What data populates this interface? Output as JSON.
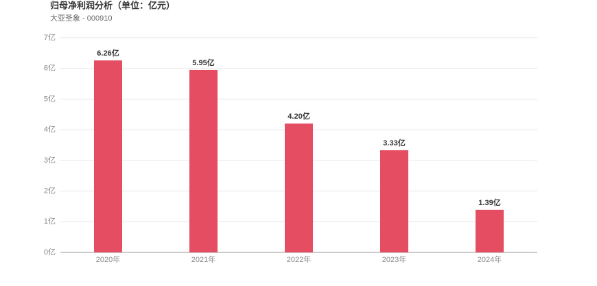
{
  "chart_data": {
    "type": "bar",
    "title": "归母净利润分析（单位：亿元）",
    "subtitle": "大亚圣象 - 000910",
    "categories": [
      "2020年",
      "2021年",
      "2022年",
      "2023年",
      "2024年"
    ],
    "values": [
      6.26,
      5.95,
      4.2,
      3.33,
      1.39
    ],
    "value_labels": [
      "6.26亿",
      "5.95亿",
      "4.20亿",
      "3.33亿",
      "1.39亿"
    ],
    "color": "#e54d63",
    "ylim": [
      0,
      7
    ],
    "yticks": [
      {
        "value": 0,
        "label": "0亿"
      },
      {
        "value": 1,
        "label": "1亿"
      },
      {
        "value": 2,
        "label": "2亿"
      },
      {
        "value": 3,
        "label": "3亿"
      },
      {
        "value": 4,
        "label": "4亿"
      },
      {
        "value": 5,
        "label": "5亿"
      },
      {
        "value": 6,
        "label": "6亿"
      },
      {
        "value": 7,
        "label": "7亿"
      }
    ],
    "grid": true
  }
}
